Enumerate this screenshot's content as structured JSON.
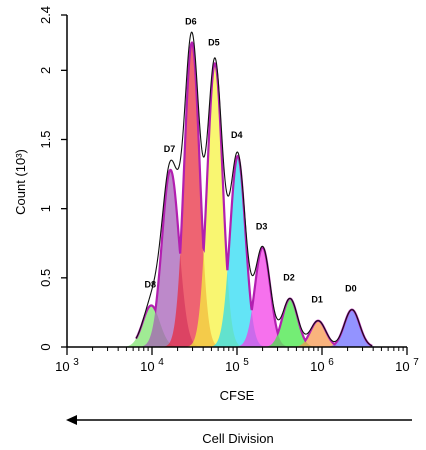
{
  "chart_data": {
    "type": "area",
    "xlabel": "CFSE",
    "ylabel": "Count (10³)",
    "xscale": "log",
    "xlim": [
      1000,
      10000000
    ],
    "ylim": [
      0,
      2.4
    ],
    "x_ticks": [
      {
        "base": "10",
        "exp": "3"
      },
      {
        "base": "10",
        "exp": "4"
      },
      {
        "base": "10",
        "exp": "5"
      },
      {
        "base": "10",
        "exp": "6"
      },
      {
        "base": "10",
        "exp": "7"
      }
    ],
    "y_ticks": [
      "0",
      "0.5",
      "1",
      "1.5",
      "2",
      "2.4"
    ],
    "y_tick_values": [
      0,
      0.5,
      1,
      1.5,
      2,
      2.4
    ],
    "annotation": "Cell Division",
    "peaks": [
      {
        "name": "D8",
        "center": 9800,
        "height": 0.3,
        "width": 0.1,
        "color": "#7be36b"
      },
      {
        "name": "D7",
        "center": 16500,
        "height": 1.28,
        "width": 0.1,
        "color": "#a35cb5"
      },
      {
        "name": "D6",
        "center": 29500,
        "height": 2.2,
        "width": 0.09,
        "color": "#e8283c"
      },
      {
        "name": "D5",
        "center": 55000,
        "height": 2.05,
        "width": 0.09,
        "color": "#f6f23a"
      },
      {
        "name": "D4",
        "center": 102000,
        "height": 1.38,
        "width": 0.09,
        "color": "#27d9f2"
      },
      {
        "name": "D3",
        "center": 200000,
        "height": 0.72,
        "width": 0.09,
        "color": "#f23ae6"
      },
      {
        "name": "D2",
        "center": 420000,
        "height": 0.35,
        "width": 0.09,
        "color": "#3ee640"
      },
      {
        "name": "D1",
        "center": 900000,
        "height": 0.19,
        "width": 0.09,
        "color": "#f7964b"
      },
      {
        "name": "D0",
        "center": 2250000,
        "height": 0.27,
        "width": 0.09,
        "color": "#6a6aff"
      }
    ],
    "grid": false,
    "legend": "none"
  }
}
